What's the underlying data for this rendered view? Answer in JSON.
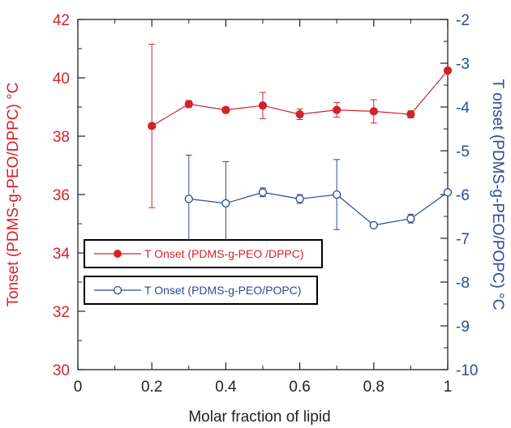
{
  "chart_data": {
    "type": "line",
    "xlabel": "Molar fraction of lipid",
    "ylabel_left": "Tonset (PDMS-g-PEO/DPPC) °C",
    "ylabel_right": "T onset (PDMS-g-PEO/POPC) °C",
    "xlim": [
      0,
      1
    ],
    "ylim_left": [
      30,
      42
    ],
    "ylim_right": [
      -10,
      -2
    ],
    "x_ticks": [
      0,
      0.2,
      0.4,
      0.6,
      0.8,
      1
    ],
    "x_tick_labels": [
      "0",
      "0.2",
      "0.4",
      "0.6",
      "0.8",
      "1"
    ],
    "y_left_ticks": [
      30,
      32,
      34,
      36,
      38,
      40,
      42
    ],
    "y_left_tick_labels": [
      "30",
      "32",
      "34",
      "36",
      "38",
      "40",
      "42"
    ],
    "y_right_ticks": [
      -10,
      -9,
      -8,
      -7,
      -6,
      -5,
      -4,
      -3,
      -2
    ],
    "y_right_tick_labels": [
      "-10",
      "-9",
      "-8",
      "-7",
      "-6",
      "-5",
      "-4",
      "-3",
      "-2"
    ],
    "grid": false,
    "legend_position": "left",
    "series": [
      {
        "name": "T Onset (PDMS-g-PEO /DPPC)",
        "axis": "left",
        "color": "#d2232a",
        "marker": "filled-circle",
        "x": [
          0.2,
          0.3,
          0.4,
          0.5,
          0.6,
          0.7,
          0.8,
          0.9,
          1.0
        ],
        "y": [
          38.35,
          39.1,
          38.9,
          39.05,
          38.75,
          38.9,
          38.85,
          38.75,
          40.25
        ],
        "yerr": [
          2.8,
          0.12,
          0.1,
          0.45,
          0.18,
          0.25,
          0.4,
          0.12,
          0
        ]
      },
      {
        "name": "T Onset (PDMS-g-PEO/POPC)",
        "axis": "right",
        "color": "#2a4a9b",
        "marker": "open-circle",
        "x": [
          0.3,
          0.4,
          0.5,
          0.6,
          0.7,
          0.8,
          0.9,
          1.0
        ],
        "y": [
          -6.1,
          -6.2,
          -5.95,
          -6.1,
          -6.0,
          -6.7,
          -6.55,
          -5.95
        ],
        "yerr": [
          1.0,
          0.95,
          0.1,
          0.1,
          0.8,
          0,
          0.1,
          0
        ]
      }
    ]
  },
  "colors": {
    "left_axis": "#d2232a",
    "right_axis": "#2a4a9b",
    "frame": "#231f20"
  }
}
